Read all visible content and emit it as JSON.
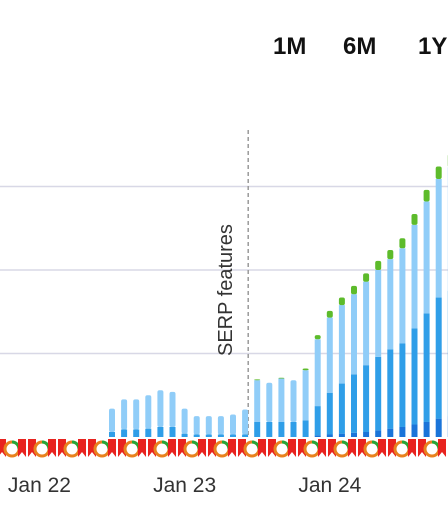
{
  "range_selector": {
    "buttons": [
      "1M",
      "6M",
      "1Y"
    ]
  },
  "colors": {
    "series_top": "#5dbb2b",
    "series_light": "#90cdf8",
    "series_mid": "#2f9ee8",
    "series_dark": "#1a74d9",
    "gridline": "#d8d8e6",
    "annotation_line": "#9a9a9a",
    "marker_red": "#e8231f",
    "marker_ring_orange": "#e8821f",
    "marker_ring_green": "#27a536"
  },
  "chart_data": {
    "type": "bar",
    "stacked": true,
    "x_tick_labels": [
      "Jan 22",
      "Jan 23",
      "Jan 24"
    ],
    "x_tick_positions": [
      2.5,
      14.5,
      26.5
    ],
    "x": [
      0,
      1,
      2,
      3,
      4,
      5,
      6,
      7,
      8,
      9,
      10,
      11,
      12,
      13,
      14,
      15,
      16,
      17,
      18,
      19,
      20,
      21,
      22,
      23,
      24,
      25,
      26,
      27,
      28,
      29,
      30,
      31,
      32,
      33,
      34,
      35,
      36,
      37
    ],
    "ylim": [
      0,
      4
    ],
    "y_gridlines": [
      1,
      2,
      3
    ],
    "grid": true,
    "series": [
      {
        "values": [
          0,
          0,
          0,
          0,
          0,
          0,
          0,
          0,
          0,
          0,
          0,
          0,
          0,
          0,
          0,
          0,
          0,
          0,
          0,
          0,
          0,
          0,
          0,
          0,
          0,
          0.02,
          0.03,
          0.04,
          0.05,
          0.06,
          0.08,
          0.1,
          0.12,
          0.15,
          0.18,
          0.22,
          0.25,
          0.28
        ]
      },
      {
        "values": [
          0,
          0,
          0,
          0,
          0,
          0,
          0,
          0,
          0.06,
          0.09,
          0.09,
          0.1,
          0.12,
          0.12,
          0.04,
          0.03,
          0.03,
          0.03,
          0.03,
          0.03,
          0.18,
          0.18,
          0.18,
          0.18,
          0.2,
          0.35,
          0.5,
          0.6,
          0.7,
          0.8,
          0.88,
          0.95,
          1.0,
          1.15,
          1.3,
          1.45,
          1.5,
          1.55
        ]
      },
      {
        "values": [
          0,
          0,
          0,
          0,
          0,
          0,
          0,
          0,
          0.28,
          0.36,
          0.36,
          0.4,
          0.44,
          0.42,
          0.3,
          0.22,
          0.22,
          0.22,
          0.24,
          0.3,
          0.5,
          0.47,
          0.52,
          0.5,
          0.6,
          0.8,
          0.9,
          0.94,
          0.96,
          1.0,
          1.04,
          1.08,
          1.14,
          1.24,
          1.34,
          1.42,
          1.48,
          1.52
        ]
      },
      {
        "values": [
          0,
          0,
          0,
          0,
          0,
          0,
          0,
          0,
          0,
          0,
          0,
          0,
          0,
          0,
          0,
          0,
          0,
          0,
          0,
          0,
          0.01,
          0,
          0.01,
          0,
          0.02,
          0.05,
          0.08,
          0.09,
          0.1,
          0.1,
          0.11,
          0.11,
          0.12,
          0.13,
          0.14,
          0.15,
          0.16,
          0.17
        ]
      }
    ],
    "annotations": [
      {
        "x": 20,
        "label": "SERP features"
      }
    ]
  }
}
